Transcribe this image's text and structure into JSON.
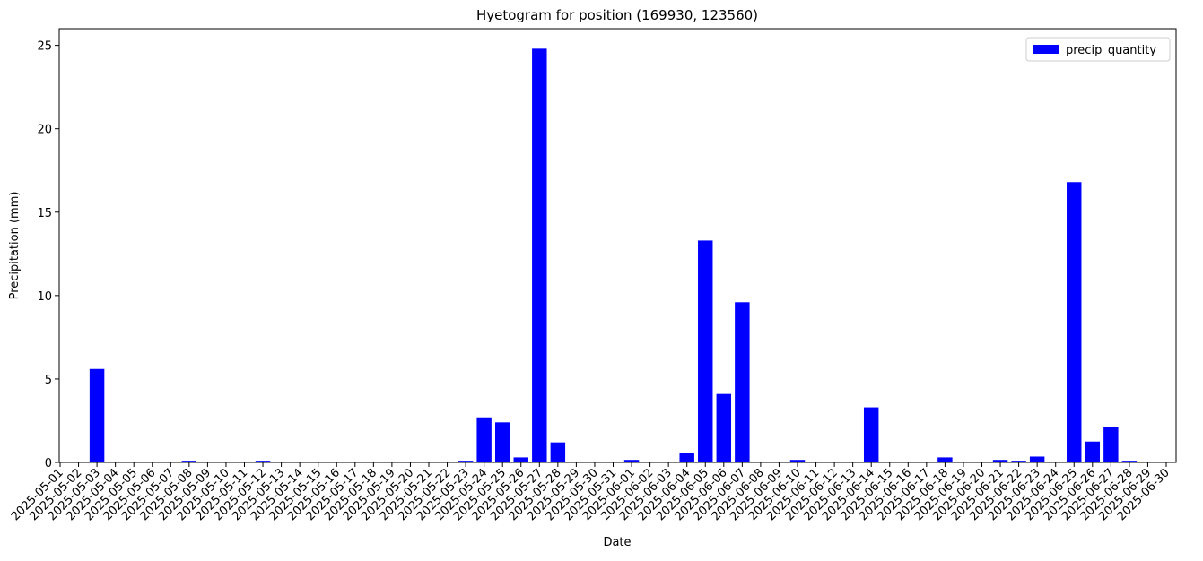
{
  "chart_data": {
    "type": "bar",
    "title": "Hyetogram for position (169930, 123560)",
    "x_label": "Date",
    "y_label": "Precipitation (mm)",
    "categories": [
      "2025-05-01",
      "2025-05-02",
      "2025-05-03",
      "2025-05-04",
      "2025-05-05",
      "2025-05-06",
      "2025-05-07",
      "2025-05-08",
      "2025-05-09",
      "2025-05-10",
      "2025-05-11",
      "2025-05-12",
      "2025-05-13",
      "2025-05-14",
      "2025-05-15",
      "2025-05-16",
      "2025-05-17",
      "2025-05-18",
      "2025-05-19",
      "2025-05-20",
      "2025-05-21",
      "2025-05-22",
      "2025-05-23",
      "2025-05-24",
      "2025-05-25",
      "2025-05-26",
      "2025-05-27",
      "2025-05-28",
      "2025-05-29",
      "2025-05-30",
      "2025-05-31",
      "2025-06-01",
      "2025-06-02",
      "2025-06-03",
      "2025-06-04",
      "2025-06-05",
      "2025-06-06",
      "2025-06-07",
      "2025-06-08",
      "2025-06-09",
      "2025-06-10",
      "2025-06-11",
      "2025-06-12",
      "2025-06-13",
      "2025-06-14",
      "2025-06-15",
      "2025-06-16",
      "2025-06-17",
      "2025-06-18",
      "2025-06-19",
      "2025-06-20",
      "2025-06-21",
      "2025-06-22",
      "2025-06-23",
      "2025-06-24",
      "2025-06-25",
      "2025-06-26",
      "2025-06-27",
      "2025-06-28",
      "2025-06-29",
      "2025-06-30"
    ],
    "series": [
      {
        "name": "precip_quantity",
        "color": "#0000ff",
        "values": [
          0,
          0,
          5.6,
          0.05,
          0,
          0.05,
          0,
          0.1,
          0,
          0,
          0,
          0.1,
          0.05,
          0,
          0.05,
          0,
          0,
          0,
          0.05,
          0,
          0,
          0.05,
          0.1,
          2.7,
          2.4,
          0.3,
          24.8,
          1.2,
          0,
          0,
          0,
          0.15,
          0,
          0,
          0.55,
          13.3,
          4.1,
          9.6,
          0,
          0,
          0.15,
          0,
          0,
          0.05,
          3.3,
          0,
          0,
          0.05,
          0.3,
          0,
          0.05,
          0.15,
          0.1,
          0.35,
          0,
          16.8,
          1.25,
          2.15,
          0.1,
          0,
          0
        ]
      }
    ],
    "ylim": [
      0,
      26
    ],
    "yticks": [
      0,
      5,
      10,
      15,
      20,
      25
    ],
    "grid": false,
    "legend": "upper right"
  }
}
